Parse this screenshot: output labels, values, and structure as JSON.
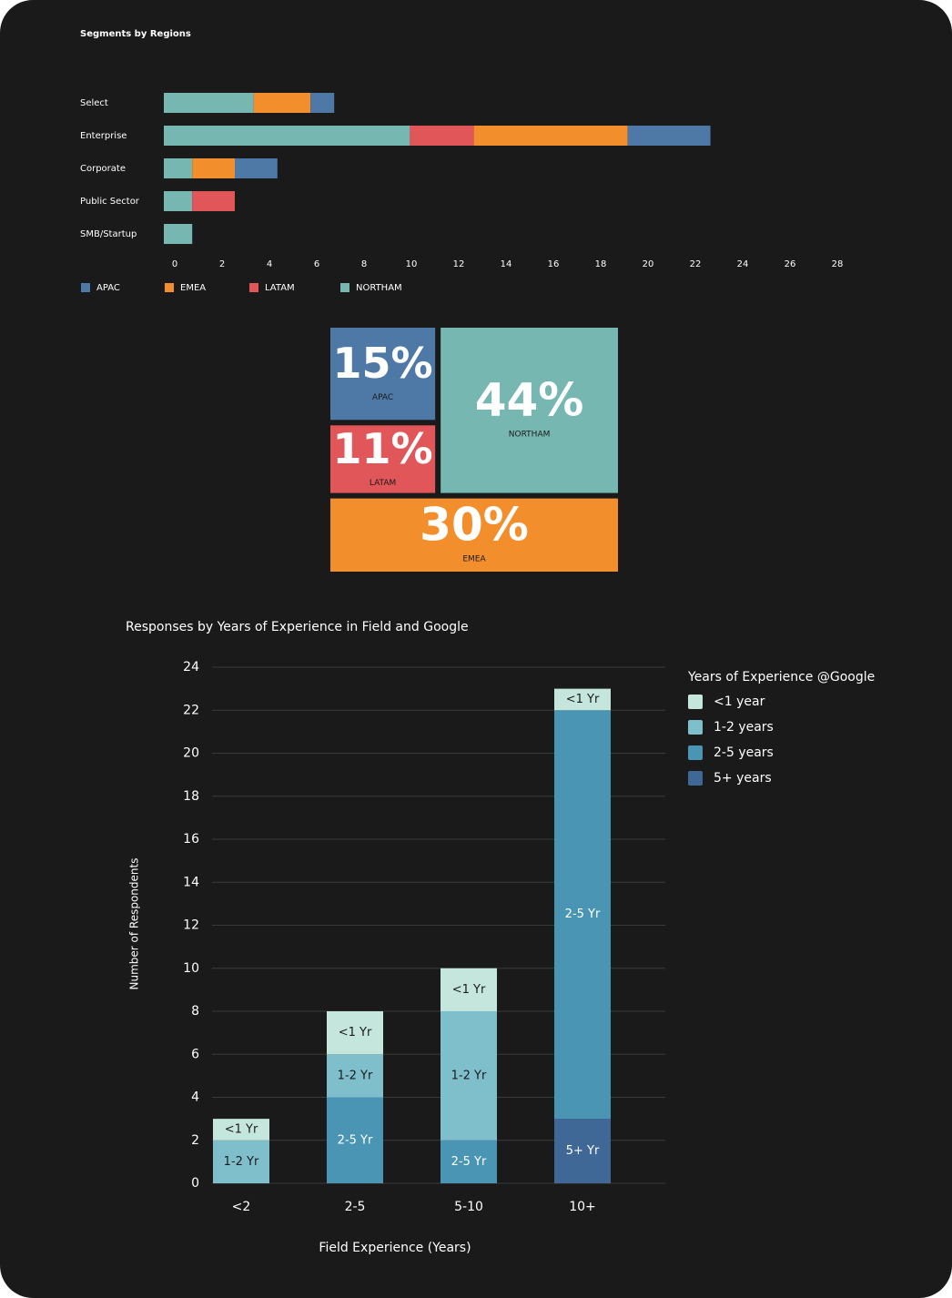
{
  "chart_data": [
    {
      "type": "hbar_stacked",
      "title": "Segments by Regions",
      "categories": [
        "Select",
        "Enterprise",
        "Corporate",
        "Public Sector",
        "SMB/Startup"
      ],
      "series": [
        {
          "name": "APAC",
          "color": "#4e79a7",
          "values": [
            1.0,
            3.5,
            1.8,
            0,
            0
          ]
        },
        {
          "name": "EMEA",
          "color": "#f28e2b",
          "values": [
            2.4,
            6.5,
            1.8,
            0,
            0
          ]
        },
        {
          "name": "LATAM",
          "color": "#e15759",
          "values": [
            0,
            2.7,
            0,
            1.8,
            0
          ]
        },
        {
          "name": "NORTHAM",
          "color": "#76b7b2",
          "values": [
            3.8,
            10.4,
            1.2,
            1.2,
            1.2
          ]
        }
      ],
      "xlim": [
        0,
        28
      ],
      "xticks": [
        0,
        2,
        4,
        6,
        8,
        10,
        12,
        14,
        16,
        18,
        20,
        22,
        24,
        26,
        28
      ],
      "legend": "bottom-left",
      "grid": false
    },
    {
      "type": "treemap",
      "categories": [
        "APAC",
        "LATAM",
        "NORTHAM",
        "EMEA"
      ],
      "values": [
        15,
        11,
        44,
        30
      ],
      "value_labels": [
        "15%",
        "11%",
        "44%",
        "30%"
      ],
      "colors": [
        "#4e79a7",
        "#e15759",
        "#76b7b2",
        "#f28e2b"
      ]
    },
    {
      "type": "bar_stacked",
      "title": "Responses by Years of Experience in Field and Google",
      "x_label": "Field Experience (Years)",
      "y_label": "Number of Respondents",
      "legend_title": "Years of Experience @Google",
      "categories": [
        "<2",
        "2-5",
        "5-10",
        "10+"
      ],
      "series": [
        {
          "name": "5+ years",
          "label": "5+ Yr",
          "color": "#3f6896",
          "values": [
            0,
            0,
            0,
            3
          ]
        },
        {
          "name": "2-5 years",
          "label": "2-5 Yr",
          "color": "#4a95b4",
          "values": [
            0,
            4,
            2,
            19
          ]
        },
        {
          "name": "1-2 years",
          "label": "1-2 Yr",
          "color": "#7fbfcb",
          "values": [
            2,
            2,
            6,
            0
          ]
        },
        {
          "name": "<1 year",
          "label": "<1 Yr",
          "color": "#c4e6dc",
          "values": [
            1,
            2,
            2,
            1
          ]
        }
      ],
      "ylim": [
        0,
        24
      ],
      "yticks": [
        0,
        2,
        4,
        6,
        8,
        10,
        12,
        14,
        16,
        18,
        20,
        22,
        24
      ],
      "grid": true,
      "legend": "right"
    }
  ]
}
